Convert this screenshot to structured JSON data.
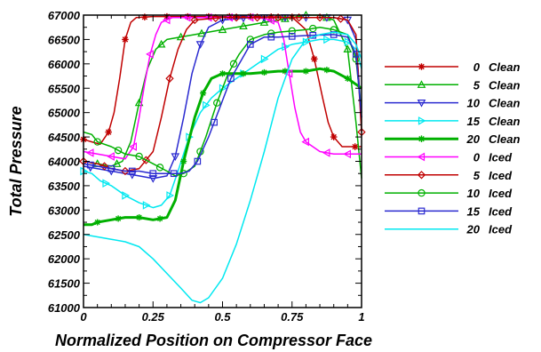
{
  "chart_data": {
    "type": "line",
    "xlabel": "Normalized Position on Compressor Face",
    "ylabel": "Total Pressure",
    "xlim": [
      0,
      1
    ],
    "ylim": [
      61000,
      67000
    ],
    "x_ticks": [
      0,
      0.25,
      0.5,
      0.75,
      1
    ],
    "x_tick_labels": [
      "0",
      "0.25",
      "0.5",
      "0.75",
      "1"
    ],
    "y_ticks": [
      61000,
      61500,
      62000,
      62500,
      63000,
      63500,
      64000,
      64500,
      65000,
      65500,
      66000,
      66500,
      67000
    ],
    "grid": false,
    "legend_position": "right",
    "series": [
      {
        "name": "0 Clean",
        "angle": "0",
        "condition": "Clean",
        "color": "#c00000",
        "marker": "star",
        "width": 1.5,
        "points": [
          [
            0,
            64450
          ],
          [
            0.03,
            64400
          ],
          [
            0.06,
            64350
          ],
          [
            0.09,
            64600
          ],
          [
            0.11,
            65000
          ],
          [
            0.13,
            65700
          ],
          [
            0.15,
            66500
          ],
          [
            0.17,
            66850
          ],
          [
            0.19,
            66950
          ],
          [
            0.25,
            66970
          ],
          [
            0.4,
            66970
          ],
          [
            0.6,
            66970
          ],
          [
            0.75,
            66960
          ],
          [
            0.8,
            66700
          ],
          [
            0.83,
            66100
          ],
          [
            0.86,
            65300
          ],
          [
            0.88,
            64800
          ],
          [
            0.9,
            64500
          ],
          [
            0.93,
            64300
          ],
          [
            1,
            64300
          ]
        ]
      },
      {
        "name": "5 Clean",
        "angle": "5",
        "condition": "Clean",
        "color": "#00b000",
        "marker": "triangle",
        "width": 1.5,
        "points": [
          [
            0,
            64000
          ],
          [
            0.05,
            63950
          ],
          [
            0.1,
            63900
          ],
          [
            0.14,
            64000
          ],
          [
            0.17,
            64400
          ],
          [
            0.2,
            65200
          ],
          [
            0.23,
            65900
          ],
          [
            0.26,
            66300
          ],
          [
            0.3,
            66500
          ],
          [
            0.4,
            66600
          ],
          [
            0.5,
            66700
          ],
          [
            0.6,
            66800
          ],
          [
            0.7,
            66900
          ],
          [
            0.8,
            67000
          ],
          [
            0.85,
            67000
          ],
          [
            0.9,
            66900
          ],
          [
            0.95,
            66300
          ],
          [
            0.98,
            64800
          ],
          [
            1,
            63650
          ]
        ]
      },
      {
        "name": "10 Clean",
        "angle": "10",
        "condition": "Clean",
        "color": "#2a2ad0",
        "marker": "triangle-down",
        "width": 1.5,
        "points": [
          [
            0,
            63900
          ],
          [
            0.05,
            63850
          ],
          [
            0.1,
            63800
          ],
          [
            0.15,
            63750
          ],
          [
            0.2,
            63700
          ],
          [
            0.25,
            63650
          ],
          [
            0.3,
            63700
          ],
          [
            0.33,
            64100
          ],
          [
            0.36,
            64900
          ],
          [
            0.39,
            65800
          ],
          [
            0.42,
            66400
          ],
          [
            0.45,
            66750
          ],
          [
            0.5,
            66900
          ],
          [
            0.6,
            66950
          ],
          [
            0.7,
            66950
          ],
          [
            0.8,
            66950
          ],
          [
            0.9,
            66950
          ],
          [
            0.95,
            66900
          ],
          [
            0.98,
            66500
          ],
          [
            1,
            64900
          ]
        ]
      },
      {
        "name": "15 Clean",
        "angle": "15",
        "condition": "Clean",
        "color": "#00e8f0",
        "marker": "triangle-right",
        "width": 1.5,
        "points": [
          [
            0,
            63800
          ],
          [
            0.03,
            63750
          ],
          [
            0.06,
            63600
          ],
          [
            0.1,
            63500
          ],
          [
            0.15,
            63300
          ],
          [
            0.2,
            63150
          ],
          [
            0.25,
            63050
          ],
          [
            0.28,
            63100
          ],
          [
            0.31,
            63300
          ],
          [
            0.34,
            63800
          ],
          [
            0.38,
            64500
          ],
          [
            0.42,
            65000
          ],
          [
            0.46,
            65300
          ],
          [
            0.5,
            65500
          ],
          [
            0.55,
            65700
          ],
          [
            0.6,
            65900
          ],
          [
            0.65,
            66100
          ],
          [
            0.7,
            66300
          ],
          [
            0.75,
            66400
          ],
          [
            0.8,
            66450
          ],
          [
            0.85,
            66500
          ],
          [
            0.9,
            66500
          ],
          [
            0.95,
            66450
          ],
          [
            0.98,
            66300
          ],
          [
            1,
            65900
          ]
        ]
      },
      {
        "name": "20 Clean",
        "angle": "20",
        "condition": "Clean",
        "color": "#00b000",
        "marker": "star",
        "width": 3.0,
        "points": [
          [
            0,
            62700
          ],
          [
            0.03,
            62700
          ],
          [
            0.05,
            62750
          ],
          [
            0.1,
            62800
          ],
          [
            0.15,
            62850
          ],
          [
            0.2,
            62850
          ],
          [
            0.25,
            62800
          ],
          [
            0.3,
            62850
          ],
          [
            0.33,
            63200
          ],
          [
            0.36,
            64000
          ],
          [
            0.4,
            64900
          ],
          [
            0.43,
            65400
          ],
          [
            0.46,
            65700
          ],
          [
            0.5,
            65800
          ],
          [
            0.6,
            65800
          ],
          [
            0.7,
            65850
          ],
          [
            0.8,
            65850
          ],
          [
            0.85,
            65900
          ],
          [
            0.9,
            65850
          ],
          [
            0.95,
            65700
          ],
          [
            1,
            65500
          ]
        ]
      },
      {
        "name": "0 Iced",
        "angle": "0",
        "condition": "Iced",
        "color": "#ff00ff",
        "marker": "triangle-left",
        "width": 1.5,
        "points": [
          [
            0,
            64200
          ],
          [
            0.05,
            64150
          ],
          [
            0.1,
            64100
          ],
          [
            0.15,
            64050
          ],
          [
            0.18,
            64300
          ],
          [
            0.2,
            64900
          ],
          [
            0.22,
            65600
          ],
          [
            0.24,
            66200
          ],
          [
            0.26,
            66600
          ],
          [
            0.28,
            66850
          ],
          [
            0.32,
            66950
          ],
          [
            0.4,
            66950
          ],
          [
            0.5,
            66950
          ],
          [
            0.6,
            66950
          ],
          [
            0.65,
            66930
          ],
          [
            0.7,
            66850
          ],
          [
            0.72,
            66500
          ],
          [
            0.74,
            65800
          ],
          [
            0.76,
            65100
          ],
          [
            0.78,
            64600
          ],
          [
            0.8,
            64400
          ],
          [
            0.85,
            64200
          ],
          [
            0.9,
            64150
          ],
          [
            1,
            64150
          ]
        ]
      },
      {
        "name": "5 Iced",
        "angle": "5",
        "condition": "Iced",
        "color": "#c00000",
        "marker": "diamond",
        "width": 1.5,
        "points": [
          [
            0,
            64000
          ],
          [
            0.05,
            63950
          ],
          [
            0.1,
            63850
          ],
          [
            0.15,
            63800
          ],
          [
            0.2,
            63850
          ],
          [
            0.25,
            64200
          ],
          [
            0.28,
            64900
          ],
          [
            0.31,
            65700
          ],
          [
            0.34,
            66300
          ],
          [
            0.37,
            66700
          ],
          [
            0.4,
            66900
          ],
          [
            0.5,
            66950
          ],
          [
            0.6,
            66950
          ],
          [
            0.7,
            66950
          ],
          [
            0.8,
            66950
          ],
          [
            0.9,
            66950
          ],
          [
            0.95,
            66900
          ],
          [
            0.98,
            66600
          ],
          [
            1,
            64600
          ]
        ]
      },
      {
        "name": "10 Iced",
        "angle": "10",
        "condition": "Iced",
        "color": "#00b000",
        "marker": "circle",
        "width": 1.5,
        "points": [
          [
            0,
            64600
          ],
          [
            0.03,
            64550
          ],
          [
            0.05,
            64400
          ],
          [
            0.1,
            64300
          ],
          [
            0.15,
            64150
          ],
          [
            0.2,
            64100
          ],
          [
            0.25,
            63950
          ],
          [
            0.3,
            63800
          ],
          [
            0.33,
            63700
          ],
          [
            0.36,
            63750
          ],
          [
            0.4,
            63900
          ],
          [
            0.44,
            64500
          ],
          [
            0.48,
            65200
          ],
          [
            0.52,
            65800
          ],
          [
            0.56,
            66200
          ],
          [
            0.6,
            66500
          ],
          [
            0.65,
            66600
          ],
          [
            0.7,
            66650
          ],
          [
            0.8,
            66700
          ],
          [
            0.85,
            66750
          ],
          [
            0.9,
            66700
          ],
          [
            0.95,
            66600
          ],
          [
            0.98,
            66100
          ],
          [
            1,
            65000
          ]
        ]
      },
      {
        "name": "15 Iced",
        "angle": "15",
        "condition": "Iced",
        "color": "#2a2ad0",
        "marker": "square",
        "width": 1.5,
        "points": [
          [
            0,
            63950
          ],
          [
            0.05,
            63900
          ],
          [
            0.1,
            63850
          ],
          [
            0.15,
            63800
          ],
          [
            0.2,
            63800
          ],
          [
            0.25,
            63750
          ],
          [
            0.3,
            63750
          ],
          [
            0.35,
            63750
          ],
          [
            0.38,
            63800
          ],
          [
            0.41,
            64000
          ],
          [
            0.45,
            64500
          ],
          [
            0.49,
            65100
          ],
          [
            0.53,
            65700
          ],
          [
            0.57,
            66100
          ],
          [
            0.6,
            66400
          ],
          [
            0.65,
            66550
          ],
          [
            0.7,
            66550
          ],
          [
            0.8,
            66580
          ],
          [
            0.9,
            66600
          ],
          [
            0.95,
            66550
          ],
          [
            0.98,
            66200
          ],
          [
            1,
            64900
          ]
        ]
      },
      {
        "name": "20 Iced",
        "angle": "20",
        "condition": "Iced",
        "color": "#00e8f0",
        "marker": "none",
        "width": 1.5,
        "points": [
          [
            0,
            62500
          ],
          [
            0.05,
            62450
          ],
          [
            0.1,
            62400
          ],
          [
            0.15,
            62350
          ],
          [
            0.2,
            62250
          ],
          [
            0.25,
            62000
          ],
          [
            0.3,
            61700
          ],
          [
            0.35,
            61400
          ],
          [
            0.39,
            61150
          ],
          [
            0.42,
            61100
          ],
          [
            0.45,
            61200
          ],
          [
            0.5,
            61600
          ],
          [
            0.55,
            62300
          ],
          [
            0.6,
            63200
          ],
          [
            0.65,
            64200
          ],
          [
            0.7,
            65300
          ],
          [
            0.75,
            66100
          ],
          [
            0.8,
            66500
          ],
          [
            0.85,
            66600
          ],
          [
            0.9,
            66650
          ],
          [
            0.95,
            66600
          ],
          [
            0.98,
            66400
          ],
          [
            1,
            66100
          ]
        ]
      }
    ]
  }
}
